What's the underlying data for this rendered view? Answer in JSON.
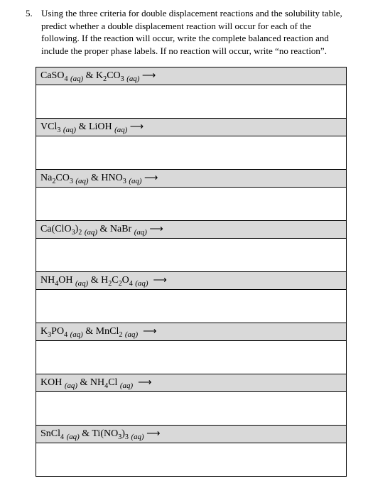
{
  "question": {
    "number": "5.",
    "text": "Using the three criteria for double displacement reactions and the solubility table, predict whether a double displacement reaction will occur for each of the following. If the reaction will occur, write the complete balanced reaction and include the proper phase labels. If no reaction will occur, write “no reaction”."
  },
  "reactions": [
    {
      "html": "CaSO<sub>4</sub> <span class='phase'>(aq)</span> & K<sub>2</sub>CO<sub>3</sub> <span class='phase'>(aq)</span> <span class='arrow'>⟶</span>"
    },
    {
      "html": "VCl<sub>3</sub> <span class='phase'>(aq)</span> & LiOH <span class='phase'>(aq)</span> <span class='arrow'>⟶</span>"
    },
    {
      "html": "Na<sub>2</sub>CO<sub>3</sub> <span class='phase'>(aq)</span> & HNO<sub>3</sub> <span class='phase'>(aq)</span> <span class='arrow'>⟶</span>"
    },
    {
      "html": "Ca(ClO<sub>3</sub>)<sub>2</sub> <span class='phase'>(aq)</span> & NaBr <span class='phase'>(aq)</span> <span class='arrow'>⟶</span>"
    },
    {
      "html": "NH<sub>4</sub>OH <span class='phase'>(aq)</span> & H<sub>2</sub>C<sub>2</sub>O<sub>4</sub> <span class='phase'>(aq)</span>&nbsp; <span class='arrow'>⟶</span>"
    },
    {
      "html": "K<sub>3</sub>PO<sub>4</sub> <span class='phase'>(aq)</span> & MnCl<sub>2</sub> <span class='phase'>(aq)</span>&nbsp; <span class='arrow'>⟶</span>"
    },
    {
      "html": "KOH <span class='phase'>(aq)</span> & NH<sub>4</sub>Cl <span class='phase'>(aq)</span>&nbsp; <span class='arrow'>⟶</span>"
    },
    {
      "html": "SnCl<sub>4</sub> <span class='phase'>(aq)</span> & Ti(NO<sub>3</sub>)<sub>3</sub> <span class='phase'>(aq)</span> <span class='arrow'>⟶</span>"
    }
  ],
  "style": {
    "shaded_bg": "#d9d9d9",
    "border_color": "#000000",
    "page_bg": "#ffffff",
    "font": "Georgia"
  }
}
